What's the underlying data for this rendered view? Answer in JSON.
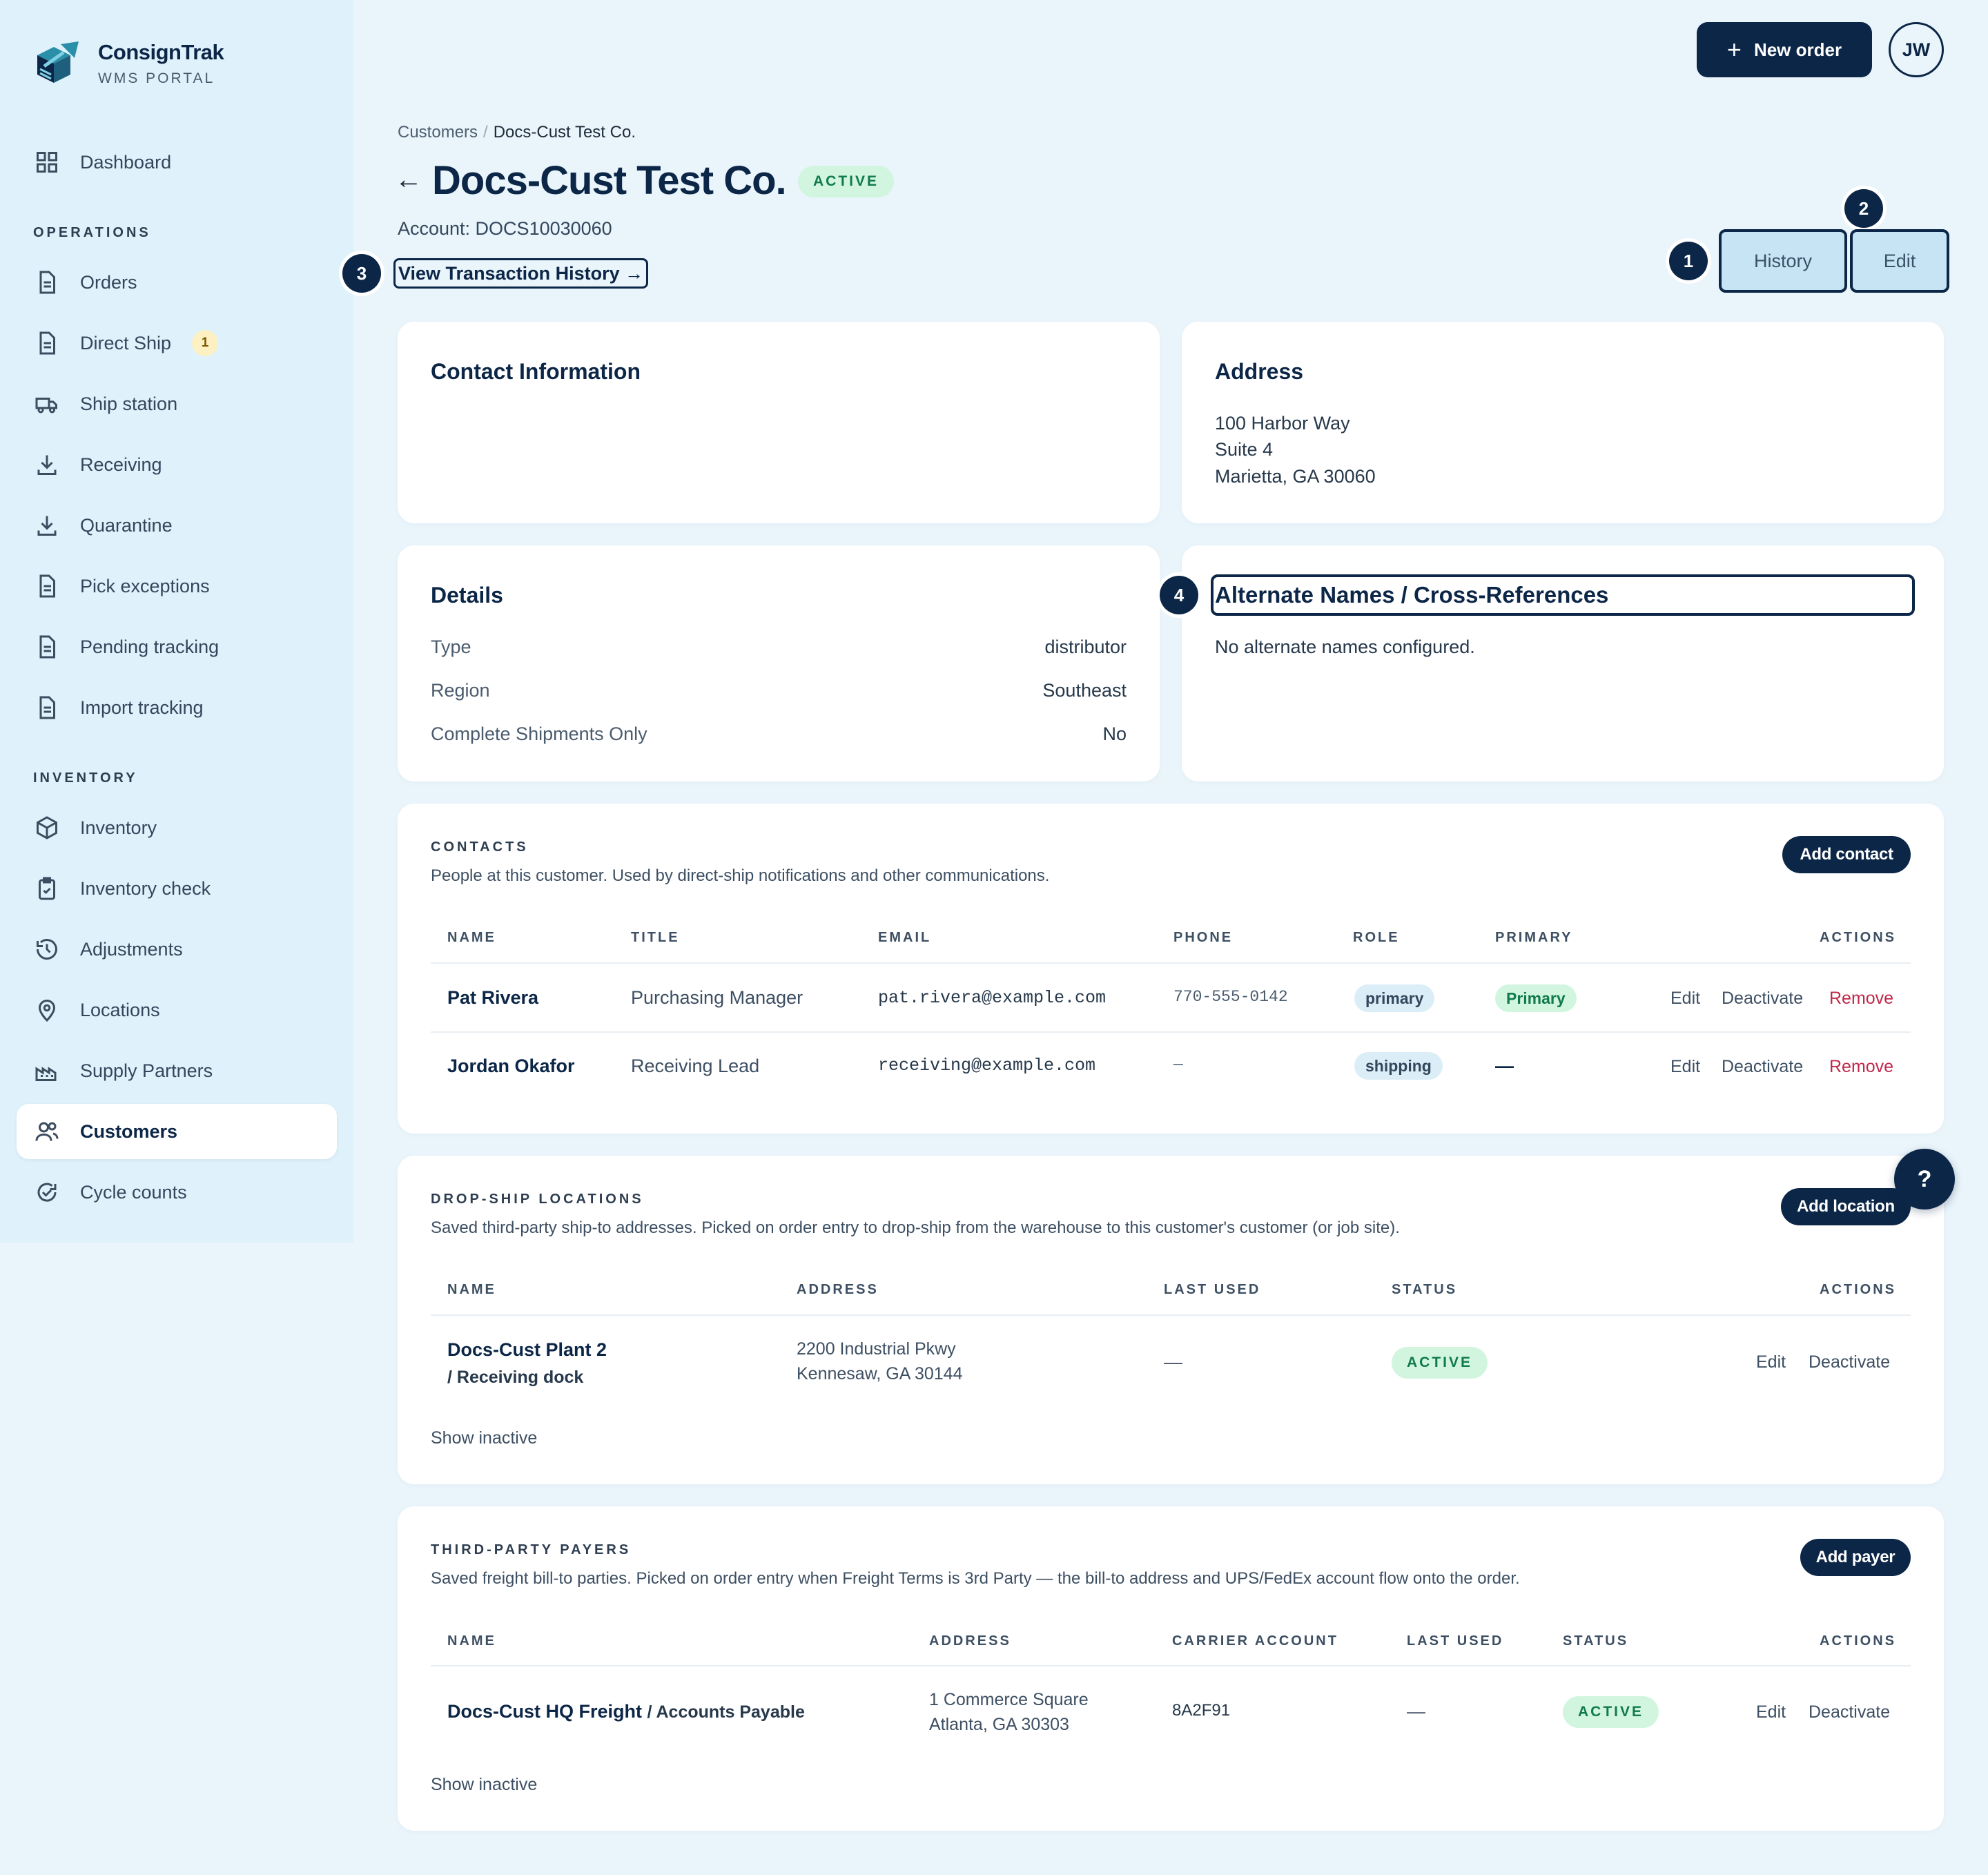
{
  "app": {
    "name": "ConsignTrak",
    "subtitle": "WMS PORTAL"
  },
  "sidebar": {
    "items": [
      {
        "label": "Dashboard",
        "icon": "dashboard-grid-icon"
      },
      {
        "label": "Orders",
        "icon": "document-icon"
      },
      {
        "label": "Direct Ship",
        "icon": "document-icon",
        "badge": "1"
      },
      {
        "label": "Ship station",
        "icon": "truck-icon"
      },
      {
        "label": "Receiving",
        "icon": "download-icon"
      },
      {
        "label": "Quarantine",
        "icon": "download-icon"
      },
      {
        "label": "Pick exceptions",
        "icon": "document-icon"
      },
      {
        "label": "Pending tracking",
        "icon": "document-icon"
      },
      {
        "label": "Import tracking",
        "icon": "document-icon"
      },
      {
        "label": "Inventory",
        "icon": "box-icon"
      },
      {
        "label": "Inventory check",
        "icon": "clipboard-check-icon"
      },
      {
        "label": "Adjustments",
        "icon": "history-icon"
      },
      {
        "label": "Locations",
        "icon": "map-pin-icon"
      },
      {
        "label": "Supply Partners",
        "icon": "factory-icon"
      },
      {
        "label": "Customers",
        "icon": "users-icon",
        "active": true
      },
      {
        "label": "Cycle counts",
        "icon": "refresh-check-icon"
      }
    ],
    "sections": {
      "operations": "OPERATIONS",
      "inventory": "INVENTORY"
    }
  },
  "topbar": {
    "new_order_label": "New order",
    "avatar_initials": "JW",
    "help_label": "?"
  },
  "header": {
    "breadcrumb": {
      "parent": "Customers",
      "separator": "/",
      "current": "Docs-Cust Test Co."
    },
    "back_arrow": "←",
    "title": "Docs-Cust Test Co.",
    "status": "ACTIVE",
    "account": "Account: DOCS10030060",
    "view_history_label": "View Transaction History →",
    "history_label": "History",
    "edit_label": "Edit"
  },
  "markers": [
    "1",
    "2",
    "3",
    "4"
  ],
  "contact_info": {
    "title": "Contact Information"
  },
  "address": {
    "title": "Address",
    "lines": [
      "100 Harbor Way",
      "Suite 4",
      "Marietta, GA 30060"
    ]
  },
  "details": {
    "title": "Details",
    "rows": [
      {
        "label": "Type",
        "value": "distributor"
      },
      {
        "label": "Region",
        "value": "Southeast"
      },
      {
        "label": "Complete Shipments Only",
        "value": "No"
      }
    ]
  },
  "alternate_names": {
    "title": "Alternate Names / Cross-References",
    "empty": "No alternate names configured."
  },
  "contacts": {
    "label": "CONTACTS",
    "description": "People at this customer. Used by direct-ship notifications and other communications.",
    "add_label": "Add contact",
    "columns": [
      "NAME",
      "TITLE",
      "EMAIL",
      "PHONE",
      "ROLE",
      "PRIMARY",
      "ACTIONS"
    ],
    "rows": [
      {
        "name": "Pat Rivera",
        "title": "Purchasing Manager",
        "email": "pat.rivera@example.com",
        "phone": "770-555-0142",
        "role": "primary",
        "primary": "Primary"
      },
      {
        "name": "Jordan Okafor",
        "title": "Receiving Lead",
        "email": "receiving@example.com",
        "phone": "—",
        "role": "shipping",
        "primary": "—"
      }
    ],
    "actions": {
      "edit": "Edit",
      "deactivate": "Deactivate",
      "remove": "Remove"
    }
  },
  "drop_ship": {
    "label": "DROP-SHIP LOCATIONS",
    "description": "Saved third-party ship-to addresses. Picked on order entry to drop-ship from the warehouse to this customer's customer (or job site).",
    "add_label": "Add location",
    "columns": [
      "NAME",
      "ADDRESS",
      "LAST USED",
      "STATUS",
      "ACTIONS"
    ],
    "rows": [
      {
        "name": "Docs-Cust Plant 2",
        "sub": "/ Receiving dock",
        "address1": "2200 Industrial Pkwy",
        "address2": "Kennesaw, GA 30144",
        "last_used": "—",
        "status": "ACTIVE"
      }
    ],
    "actions": {
      "edit": "Edit",
      "deactivate": "Deactivate"
    },
    "show_inactive": "Show inactive"
  },
  "payers": {
    "label": "THIRD-PARTY PAYERS",
    "description": "Saved freight bill-to parties. Picked on order entry when Freight Terms is 3rd Party — the bill-to address and UPS/FedEx account flow onto the order.",
    "add_label": "Add payer",
    "columns": [
      "NAME",
      "ADDRESS",
      "CARRIER ACCOUNT",
      "LAST USED",
      "STATUS",
      "ACTIONS"
    ],
    "rows": [
      {
        "name": "Docs-Cust HQ Freight",
        "sub": "/ Accounts Payable",
        "address1": "1 Commerce Square",
        "address2": "Atlanta, GA 30303",
        "carrier_account": "8A2F91",
        "last_used": "—",
        "status": "ACTIVE"
      }
    ],
    "actions": {
      "edit": "Edit",
      "deactivate": "Deactivate"
    },
    "show_inactive": "Show inactive"
  },
  "colors": {
    "brand": "#0c2647",
    "accent_green": "#107a4c",
    "danger": "#c0284a",
    "page_bg": "#eaf5fb"
  }
}
